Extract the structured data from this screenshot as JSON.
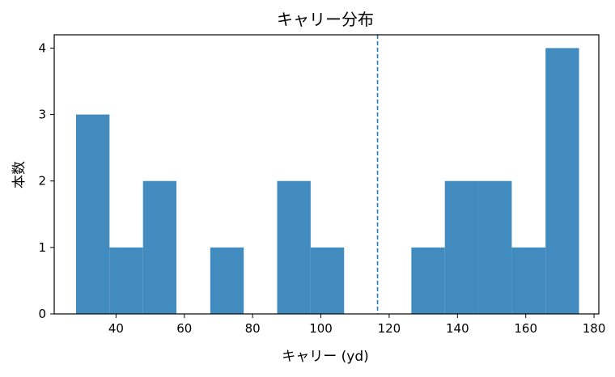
{
  "chart_data": {
    "type": "bar",
    "title": "キャリー分布",
    "xlabel": "キャリー (yd)",
    "ylabel": "本数",
    "xlim": [
      21.9,
      181.4
    ],
    "ylim": [
      0,
      4.2
    ],
    "xticks": [
      40,
      60,
      80,
      100,
      120,
      140,
      160,
      180
    ],
    "yticks": [
      0,
      1,
      2,
      3,
      4
    ],
    "bins": [
      {
        "start": 28.3,
        "end": 38.1,
        "count": 3
      },
      {
        "start": 38.1,
        "end": 47.9,
        "count": 1
      },
      {
        "start": 47.9,
        "end": 57.7,
        "count": 2
      },
      {
        "start": 57.7,
        "end": 67.6,
        "count": 0
      },
      {
        "start": 67.6,
        "end": 77.4,
        "count": 1
      },
      {
        "start": 77.4,
        "end": 87.2,
        "count": 0
      },
      {
        "start": 87.2,
        "end": 97.0,
        "count": 2
      },
      {
        "start": 97.0,
        "end": 106.8,
        "count": 1
      },
      {
        "start": 106.8,
        "end": 116.7,
        "count": 0
      },
      {
        "start": 116.7,
        "end": 126.5,
        "count": 0
      },
      {
        "start": 126.5,
        "end": 136.3,
        "count": 1
      },
      {
        "start": 136.3,
        "end": 146.1,
        "count": 2
      },
      {
        "start": 146.1,
        "end": 155.9,
        "count": 2
      },
      {
        "start": 155.9,
        "end": 165.8,
        "count": 1
      },
      {
        "start": 165.8,
        "end": 175.6,
        "count": 4
      }
    ],
    "reference_line": {
      "x": 116.6,
      "style": "dashed"
    },
    "grid": false,
    "colors": {
      "bar": "#428bbf",
      "reference_line": "#1f77b4",
      "axes": "#000000"
    }
  }
}
